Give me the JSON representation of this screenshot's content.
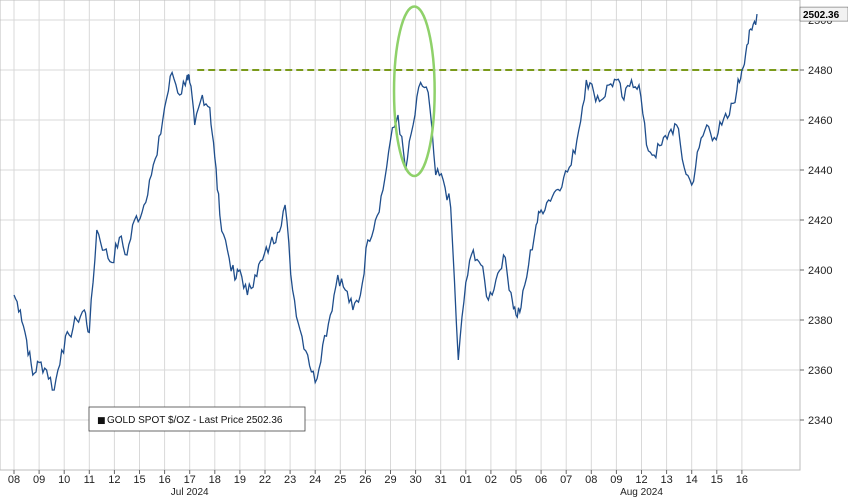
{
  "colors": {
    "line": "#1f4e8c",
    "resistance": "#7a9a1a",
    "highlight": "#8fd16a",
    "grid": "#d9d9d9",
    "last_box": "#f2f2f2"
  },
  "chart_data": {
    "type": "line",
    "title": "",
    "xlabel": "",
    "ylabel": "",
    "ylim": [
      2335,
      2510
    ],
    "y_ticks": [
      2340,
      2360,
      2380,
      2400,
      2420,
      2440,
      2460,
      2480
    ],
    "y_tick_labels": [
      "2340",
      "2360",
      "2380",
      "2400",
      "2420",
      "2440",
      "2460",
      "2480"
    ],
    "upper_tick_label": "2500",
    "grid": true,
    "x_day_labels": [
      "08",
      "09",
      "10",
      "11",
      "12",
      "15",
      "16",
      "17",
      "18",
      "19",
      "22",
      "23",
      "24",
      "25",
      "26",
      "29",
      "30",
      "31",
      "01",
      "02",
      "05",
      "06",
      "07",
      "08",
      "09",
      "12",
      "13",
      "14",
      "15",
      "16"
    ],
    "month_labels": [
      "Jul 2024",
      "Aug 2024"
    ],
    "month_label_days": [
      7,
      25
    ],
    "resistance_level": 2480,
    "last_price": 2502.36,
    "last_price_label": "2502.36",
    "legend": {
      "marker": "■",
      "text": "GOLD SPOT $/OZ - Last Price 2502.36",
      "position": "bottom-left"
    },
    "highlight": {
      "from_day": 15.3,
      "to_day": 16.6,
      "y_low": 2440,
      "y_high": 2503
    },
    "series": [
      {
        "x": [
          0.0,
          0.25,
          0.5,
          0.75,
          1.0,
          1.3,
          1.6,
          1.9,
          2.2,
          2.5,
          2.8,
          3.0,
          3.3,
          3.6,
          3.9,
          4.2,
          4.5,
          4.8,
          5.1,
          5.4,
          5.7,
          6.0,
          6.3,
          6.6,
          6.9,
          7.0,
          7.2,
          7.5,
          7.8,
          8.0,
          8.2,
          8.5,
          8.8,
          9.0,
          9.3,
          9.6,
          9.9,
          10.2,
          10.5,
          10.8,
          11.1,
          11.4,
          11.7,
          12.0,
          12.3,
          12.6,
          12.9,
          13.2,
          13.5,
          13.8,
          14.1,
          14.4,
          14.7,
          15.0,
          15.3,
          15.6,
          15.9,
          16.2,
          16.5,
          16.8,
          17.1,
          17.4,
          17.7,
          18.0,
          18.3,
          18.6,
          18.9,
          19.2,
          19.5,
          19.8,
          20.0,
          20.2,
          20.5,
          20.8,
          21.0,
          21.3,
          21.6,
          21.9,
          22.2,
          22.5,
          22.8,
          23.1,
          23.4,
          23.7,
          24.0,
          24.3,
          24.6,
          24.9,
          25.2,
          25.5,
          25.8,
          26.1,
          26.4,
          26.7,
          27.0,
          27.3,
          27.6,
          27.9,
          28.2,
          28.5,
          28.8,
          29.0,
          29.2,
          29.4,
          29.6
        ],
        "values": [
          2390,
          2384,
          2372,
          2358,
          2363,
          2360,
          2352,
          2368,
          2374,
          2380,
          2384,
          2375,
          2416,
          2408,
          2403,
          2413,
          2406,
          2420,
          2423,
          2436,
          2446,
          2465,
          2479,
          2470,
          2478,
          2475,
          2458,
          2470,
          2465,
          2445,
          2422,
          2408,
          2396,
          2400,
          2390,
          2398,
          2404,
          2410,
          2415,
          2426,
          2392,
          2376,
          2366,
          2355,
          2370,
          2382,
          2398,
          2392,
          2384,
          2390,
          2412,
          2420,
          2432,
          2452,
          2462,
          2440,
          2458,
          2475,
          2471,
          2438,
          2436,
          2425,
          2364,
          2395,
          2408,
          2402,
          2388,
          2396,
          2406,
          2391,
          2382,
          2385,
          2402,
          2418,
          2424,
          2428,
          2432,
          2437,
          2442,
          2456,
          2476,
          2471,
          2468,
          2474,
          2476,
          2468,
          2476,
          2474,
          2450,
          2446,
          2450,
          2455,
          2458,
          2441,
          2434,
          2449,
          2458,
          2453,
          2458,
          2462,
          2472,
          2480,
          2490,
          2496,
          2502.36
        ]
      }
    ]
  }
}
